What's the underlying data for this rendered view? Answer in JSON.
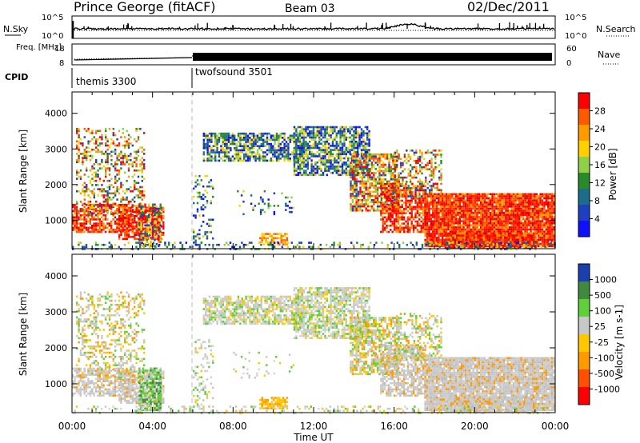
{
  "header": {
    "station": "Prince George (fitACF)",
    "beam": "Beam 03",
    "date": "02/Dec/2011"
  },
  "chart_data": [
    {
      "type": "line",
      "name": "noise-panel",
      "left_label": "N.Sky",
      "right_label": "N.Search",
      "left_ticks": [
        "10^5",
        "10^0"
      ],
      "right_ticks": [
        "10^5",
        "10^0"
      ]
    },
    {
      "type": "line",
      "name": "freq-nave-panel",
      "left_label": "Freq. [MHz]",
      "right_label": "Nave",
      "left_ticks": [
        "18",
        "8"
      ],
      "right_ticks": [
        "60",
        "0"
      ]
    },
    {
      "type": "table",
      "name": "cpid-strip",
      "label": "CPID",
      "modes": [
        {
          "name": "themis 3300",
          "start_hour": 0
        },
        {
          "name": "twofsound 3501",
          "start_hour": 6
        }
      ]
    },
    {
      "type": "heatmap",
      "name": "power-panel",
      "ylabel": "Slant Range [km]",
      "yticks": [
        "4000",
        "3000",
        "2000",
        "1000"
      ],
      "ylim": [
        200,
        4600
      ],
      "colorbar": {
        "label": "Power [dB]",
        "ticks": [
          "28",
          "24",
          "20",
          "16",
          "12",
          "8",
          "4"
        ],
        "colors": [
          "#ff0000",
          "#ff5a00",
          "#ff9a00",
          "#ffd000",
          "#8fcf4a",
          "#2a8a2a",
          "#1b6e8a",
          "#1e3fbf",
          "#1010ff"
        ]
      }
    },
    {
      "type": "heatmap",
      "name": "velocity-panel",
      "ylabel": "Slant Range [km]",
      "yticks": [
        "4000",
        "3000",
        "2000",
        "1000"
      ],
      "ylim": [
        200,
        4600
      ],
      "colorbar": {
        "label": "Velocity [m s-1]",
        "ticks": [
          "1000",
          "500",
          "100",
          "25",
          "-25",
          "-100",
          "-500",
          "-1000"
        ],
        "colors": [
          "#1c3fb0",
          "#3f8a3f",
          "#5fd03a",
          "#c8c8c8",
          "#ffc800",
          "#ff9a00",
          "#ff5000",
          "#ff0000"
        ]
      }
    }
  ],
  "xaxis": {
    "label": "Time UT",
    "ticks": [
      "00:00",
      "04:00",
      "08:00",
      "12:00",
      "16:00",
      "20:00",
      "00:00"
    ]
  }
}
